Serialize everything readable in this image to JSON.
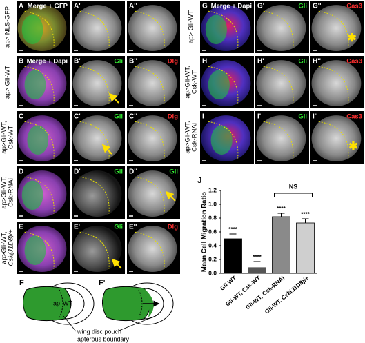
{
  "left_rows": [
    {
      "lines": [
        "ap> NLS-GFP"
      ],
      "panels": [
        {
          "letter": "A",
          "channel": "Merge + GFP"
        },
        {
          "letter": "A'"
        },
        {
          "letter": "A''"
        }
      ]
    },
    {
      "lines": [
        "ap> Gli-WT"
      ],
      "panels": [
        {
          "letter": "B",
          "channel": "Merge + Dapi"
        },
        {
          "letter": "B'",
          "channel": "Gli"
        },
        {
          "letter": "B''",
          "channel": "Dlg"
        }
      ]
    },
    {
      "lines": [
        "ap>Gli-WT,",
        "Csk-WT"
      ],
      "panels": [
        {
          "letter": "C"
        },
        {
          "letter": "C'",
          "channel": "Gli"
        },
        {
          "letter": "C''",
          "channel": "Dlg"
        }
      ]
    },
    {
      "lines": [
        "ap>Gli-WT,",
        "Csk-RNAi"
      ],
      "panels": [
        {
          "letter": "D"
        },
        {
          "letter": "D'",
          "channel": "Gli"
        },
        {
          "letter": "D''",
          "channel": "Gli"
        }
      ]
    },
    {
      "lines": [
        "ap>Gli-WT,",
        "Csk(J1D8)/+"
      ],
      "panels": [
        {
          "letter": "E"
        },
        {
          "letter": "E'",
          "channel": "Gli"
        },
        {
          "letter": "E''",
          "channel": "Dlg"
        }
      ]
    }
  ],
  "right_rows": [
    {
      "lines": [
        "ap> Gli-WT"
      ],
      "panels": [
        {
          "letter": "G",
          "channel": "Merge + Dapi"
        },
        {
          "letter": "G'",
          "channel": "Gli"
        },
        {
          "letter": "G''",
          "channel": "Cas3"
        }
      ]
    },
    {
      "lines": [
        "ap>Gli-WT,",
        "Csk-WT"
      ],
      "panels": [
        {
          "letter": "H"
        },
        {
          "letter": "H'",
          "channel": "Gli"
        },
        {
          "letter": "H''",
          "channel": "Cas3"
        }
      ]
    },
    {
      "lines": [
        "ap>Gli-WT,",
        "Csk-RNAi"
      ],
      "panels": [
        {
          "letter": "I"
        },
        {
          "letter": "I'",
          "channel": "Gli"
        },
        {
          "letter": "I''",
          "channel": "Cas3"
        }
      ]
    }
  ],
  "schematic": {
    "panels": [
      "F",
      "F'"
    ],
    "ap": "ap",
    "wt": "WT",
    "pouch": "wing disc pouch",
    "boundary": "apterous boundary"
  },
  "chart_data": {
    "type": "bar",
    "panel_label": "J",
    "y_label": "Mean Cell Migration Ratio",
    "categories": [
      "Gli-WT",
      "Gli-WT, Csk-WT",
      "Gli-WT, Csk-RNAi",
      "Gli-WT, Csk(J1D8)/+"
    ],
    "values": [
      0.5,
      0.08,
      0.82,
      0.73
    ],
    "errors": [
      0.07,
      0.09,
      0.05,
      0.06
    ],
    "colors": [
      "#000000",
      "#555555",
      "#8a8a8a",
      "#cfcfcf"
    ],
    "significance": [
      "****",
      "****",
      "****",
      "****"
    ],
    "annotation": "NS",
    "ylim": [
      0,
      1.2
    ],
    "yticks": [
      {
        "value": 0,
        "label": "0.0"
      },
      0.2,
      0.4,
      0.6,
      0.8,
      {
        "value": 1,
        "label": "1.0"
      },
      1.2
    ]
  }
}
